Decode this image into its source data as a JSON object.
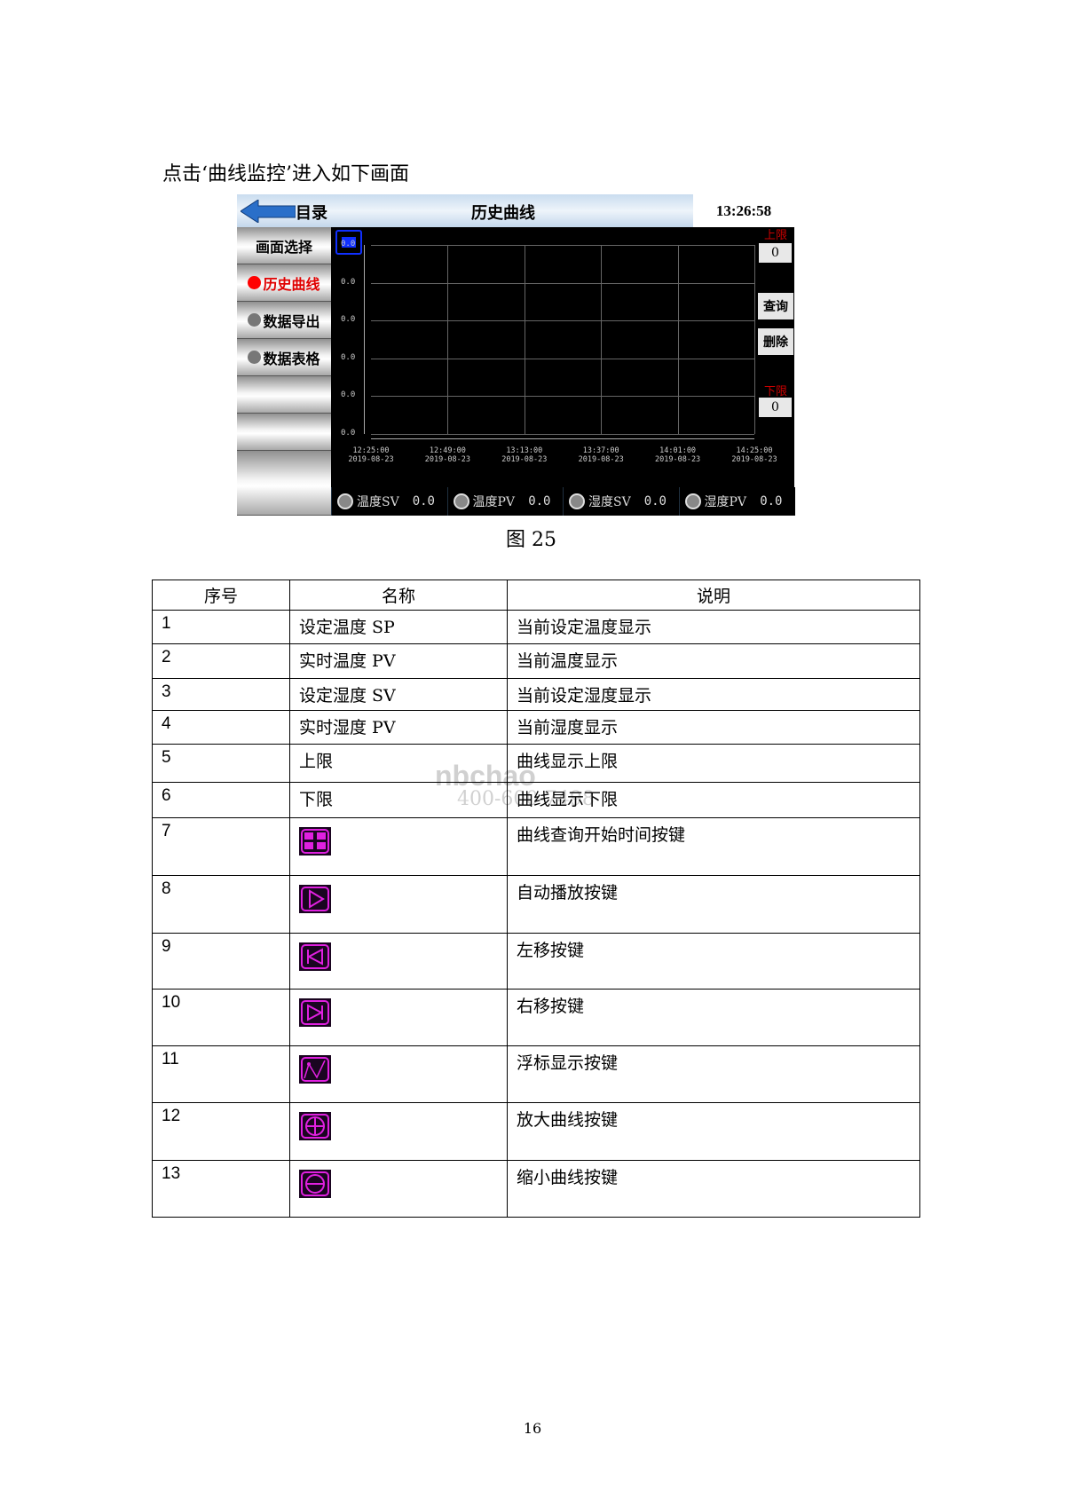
{
  "intro": "点击‘曲线监控’进入如下画面",
  "hmi": {
    "menu_label": "目录",
    "title": "历史曲线",
    "time": "13:26:58",
    "sidebar": [
      {
        "label": "画面选择",
        "dot": "none"
      },
      {
        "label": "历史曲线",
        "dot": "#ff0000",
        "color": "#e00000"
      },
      {
        "label": "数据导出",
        "dot": "#777777"
      },
      {
        "label": "数据表格",
        "dot": "#777777"
      },
      {
        "label": ""
      },
      {
        "label": ""
      },
      {
        "label": ""
      }
    ],
    "y_labels": [
      "0.0",
      "0.0",
      "0.0",
      "0.0",
      "0.0",
      "0.0"
    ],
    "x_labels": [
      {
        "t": "12:25:00",
        "d": "2019-08-23"
      },
      {
        "t": "12:49:00",
        "d": "2019-08-23"
      },
      {
        "t": "13:13:00",
        "d": "2019-08-23"
      },
      {
        "t": "13:37:00",
        "d": "2019-08-23"
      },
      {
        "t": "14:01:00",
        "d": "2019-08-23"
      },
      {
        "t": "14:25:00",
        "d": "2019-08-23"
      }
    ],
    "upper_label": "上限",
    "upper_value": "0",
    "lower_label": "下限",
    "lower_value": "0",
    "query": "查询",
    "delete": "删除",
    "readouts": [
      {
        "label": "温度SV",
        "value": "0.0"
      },
      {
        "label": "温度PV",
        "value": "0.0"
      },
      {
        "label": "湿度SV",
        "value": "0.0"
      },
      {
        "label": "湿度PV",
        "value": "0.0"
      }
    ]
  },
  "caption": "图 25",
  "table": {
    "headers": [
      "序号",
      "名称",
      "说明"
    ],
    "rows": [
      {
        "no": "1",
        "name": "设定温度 SP",
        "desc": "当前设定温度显示"
      },
      {
        "no": "2",
        "name": "实时温度 PV",
        "desc": "当前温度显示"
      },
      {
        "no": "3",
        "name": "设定湿度 SV",
        "desc": "当前设定湿度显示"
      },
      {
        "no": "4",
        "name": "实时湿度 PV",
        "desc": "当前湿度显示"
      },
      {
        "no": "5",
        "name": "上限",
        "desc": "曲线显示上限"
      },
      {
        "no": "6",
        "name": "下限",
        "desc": "曲线显示下限"
      },
      {
        "no": "7",
        "icon": "grid-icon",
        "desc": "曲线查询开始时间按键"
      },
      {
        "no": "8",
        "icon": "play-icon",
        "desc": "自动播放按键"
      },
      {
        "no": "9",
        "icon": "left-move-icon",
        "desc": "左移按键"
      },
      {
        "no": "10",
        "icon": "right-move-icon",
        "desc": "右移按键"
      },
      {
        "no": "11",
        "icon": "cursor-icon",
        "desc": "浮标显示按键"
      },
      {
        "no": "12",
        "icon": "zoom-in-icon",
        "desc": "放大曲线按键"
      },
      {
        "no": "13",
        "icon": "zoom-out-icon",
        "desc": "缩小曲线按键"
      }
    ]
  },
  "watermark": {
    "brand": "nbchao",
    "phone": "400-600-7498"
  },
  "page_number": "16",
  "colors": {
    "icon": "#e020e0",
    "hmi_bg": "#000000",
    "alarm": "#cc0000"
  }
}
